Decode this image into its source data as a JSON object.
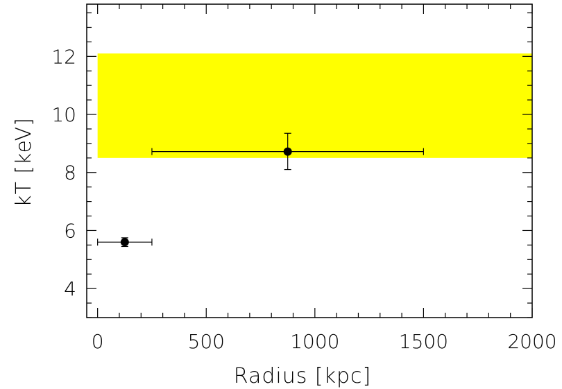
{
  "chart_data": {
    "type": "scatter",
    "xlabel": "Radius [kpc]",
    "ylabel": "kT [keV]",
    "xlim": [
      -50,
      2000
    ],
    "ylim": [
      3.0,
      13.8
    ],
    "x_ticks": [
      0,
      500,
      1000,
      1500,
      2000
    ],
    "y_ticks": [
      4,
      6,
      8,
      10,
      12
    ],
    "grid": false,
    "band": {
      "x": [
        0,
        2000
      ],
      "y": [
        8.5,
        12.1
      ],
      "color": "#ffff00"
    },
    "points": [
      {
        "x": 125,
        "y": 5.6,
        "xerr": [
          0,
          250
        ],
        "yerr": [
          5.45,
          5.75
        ]
      },
      {
        "x": 875,
        "y": 8.72,
        "xerr": [
          250,
          1500
        ],
        "yerr": [
          8.1,
          9.35
        ]
      }
    ],
    "colors": {
      "band": "#ffff00",
      "points": "#000000",
      "axes": "#000000"
    }
  }
}
